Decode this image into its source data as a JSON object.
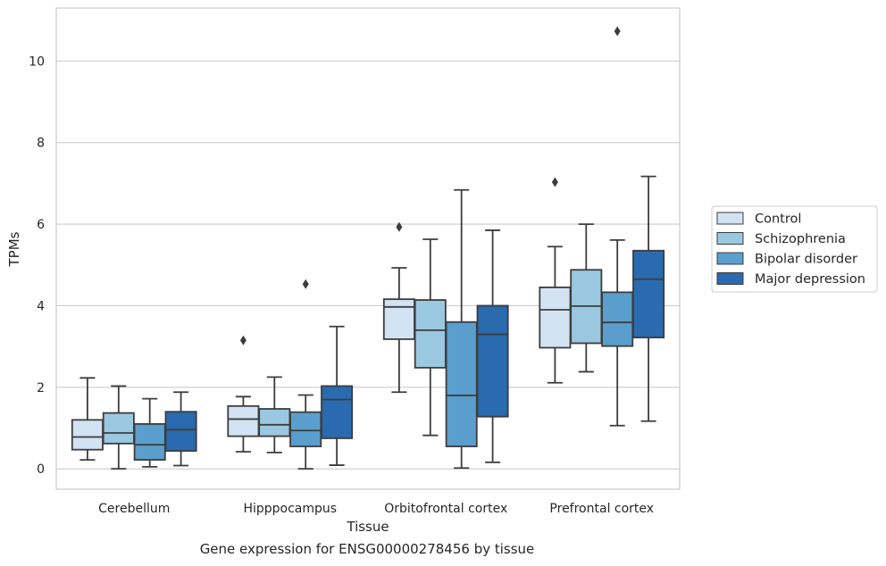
{
  "caption": "Gene expression for ENSG00000278456 by tissue",
  "chart_data": {
    "type": "boxplot",
    "xlabel": "Tissue",
    "ylabel": "TPMs",
    "ylim": [
      -0.5,
      11.3
    ],
    "yticks": [
      0,
      2,
      4,
      6,
      8,
      10
    ],
    "grid": "horizontal",
    "legend_position": "right",
    "categories": [
      "Cerebellum",
      "Hipppocampus",
      "Orbitofrontal cortex",
      "Prefrontal cortex"
    ],
    "series": [
      {
        "name": "Control",
        "color": "#d2e3f3",
        "boxes": [
          {
            "whisker_low": 0.22,
            "q1": 0.47,
            "median": 0.78,
            "q3": 1.2,
            "whisker_high": 2.23,
            "outliers": []
          },
          {
            "whisker_low": 0.42,
            "q1": 0.8,
            "median": 1.22,
            "q3": 1.54,
            "whisker_high": 1.77,
            "outliers": [
              3.15
            ]
          },
          {
            "whisker_low": 1.88,
            "q1": 3.18,
            "median": 3.97,
            "q3": 4.16,
            "whisker_high": 4.93,
            "outliers": [
              5.93
            ]
          },
          {
            "whisker_low": 2.11,
            "q1": 2.97,
            "median": 3.9,
            "q3": 4.45,
            "whisker_high": 5.45,
            "outliers": [
              7.03
            ]
          }
        ]
      },
      {
        "name": "Schizophrenia",
        "color": "#9ac8e0",
        "boxes": [
          {
            "whisker_low": 0.0,
            "q1": 0.62,
            "median": 0.88,
            "q3": 1.37,
            "whisker_high": 2.03,
            "outliers": []
          },
          {
            "whisker_low": 0.4,
            "q1": 0.8,
            "median": 1.08,
            "q3": 1.47,
            "whisker_high": 2.25,
            "outliers": []
          },
          {
            "whisker_low": 0.82,
            "q1": 2.48,
            "median": 3.4,
            "q3": 4.14,
            "whisker_high": 5.63,
            "outliers": []
          },
          {
            "whisker_low": 2.38,
            "q1": 3.08,
            "median": 3.99,
            "q3": 4.88,
            "whisker_high": 6.0,
            "outliers": []
          }
        ]
      },
      {
        "name": "Bipolar disorder",
        "color": "#5a9ecd",
        "boxes": [
          {
            "whisker_low": 0.05,
            "q1": 0.22,
            "median": 0.59,
            "q3": 1.1,
            "whisker_high": 1.72,
            "outliers": []
          },
          {
            "whisker_low": 0.0,
            "q1": 0.55,
            "median": 0.94,
            "q3": 1.39,
            "whisker_high": 1.81,
            "outliers": [
              4.53
            ]
          },
          {
            "whisker_low": 0.02,
            "q1": 0.55,
            "median": 1.8,
            "q3": 3.6,
            "whisker_high": 6.84,
            "outliers": []
          },
          {
            "whisker_low": 1.06,
            "q1": 3.01,
            "median": 3.59,
            "q3": 4.33,
            "whisker_high": 5.61,
            "outliers": [
              10.73
            ]
          }
        ]
      },
      {
        "name": "Major depression",
        "color": "#2a6aae",
        "boxes": [
          {
            "whisker_low": 0.08,
            "q1": 0.44,
            "median": 0.96,
            "q3": 1.4,
            "whisker_high": 1.88,
            "outliers": []
          },
          {
            "whisker_low": 0.09,
            "q1": 0.75,
            "median": 1.7,
            "q3": 2.03,
            "whisker_high": 3.49,
            "outliers": []
          },
          {
            "whisker_low": 0.16,
            "q1": 1.28,
            "median": 3.3,
            "q3": 4.0,
            "whisker_high": 5.85,
            "outliers": []
          },
          {
            "whisker_low": 1.17,
            "q1": 3.22,
            "median": 4.65,
            "q3": 5.35,
            "whisker_high": 7.17,
            "outliers": []
          }
        ]
      }
    ]
  }
}
